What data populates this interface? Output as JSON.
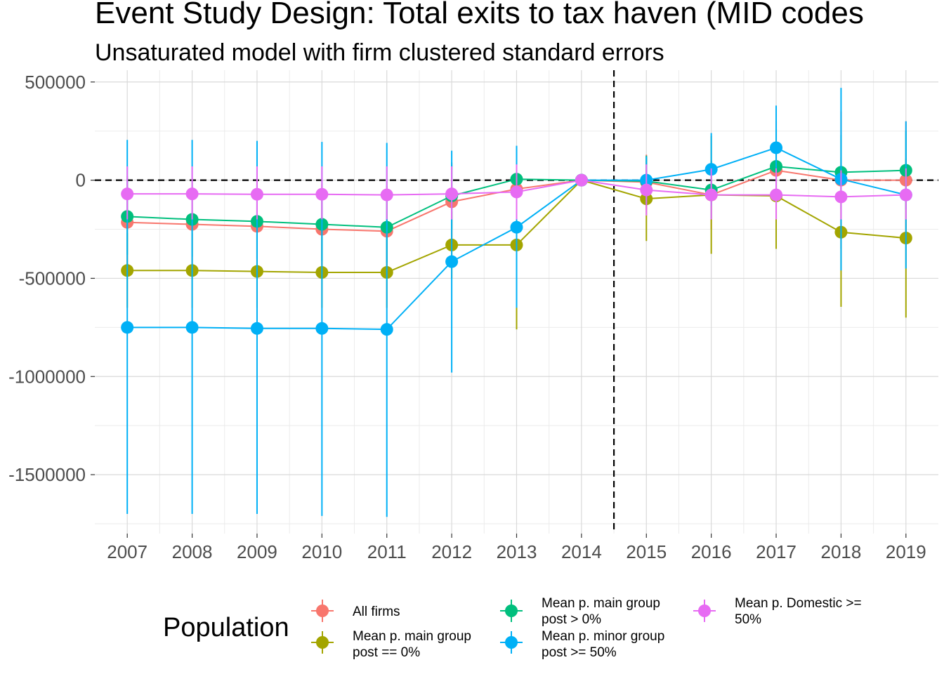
{
  "chart_data": {
    "type": "line",
    "title": "Event Study Design: Total exits to tax haven (MID codes",
    "subtitle": "Unsaturated model with firm clustered standard errors",
    "xlabel": "",
    "ylabel": "",
    "x": [
      2007,
      2008,
      2009,
      2010,
      2011,
      2012,
      2013,
      2014,
      2015,
      2016,
      2017,
      2018,
      2019
    ],
    "xlim": [
      2006.5,
      2019.5
    ],
    "ylim": [
      -1800000,
      560000
    ],
    "yticks": [
      500000,
      0,
      -500000,
      -1000000,
      -1500000
    ],
    "ytick_labels": [
      "500000",
      "0",
      "-500000",
      "-1000000",
      "-1500000"
    ],
    "grid": true,
    "reference_lines": {
      "horizontal": 0,
      "vertical": 2014.5,
      "style": "dashed"
    },
    "legend": {
      "title": "Population",
      "position": "bottom"
    },
    "series": [
      {
        "name": "All firms",
        "color": "#F8766D",
        "values": [
          -215000,
          -225000,
          -235000,
          -250000,
          -260000,
          -110000,
          -45000,
          0,
          -10000,
          -75000,
          50000,
          0,
          0
        ],
        "lower": [
          -450000,
          -460000,
          -470000,
          -480000,
          -490000,
          -300000,
          -200000,
          0,
          -150000,
          -250000,
          -200000,
          -350000,
          -300000
        ],
        "upper": [
          20000,
          10000,
          0,
          -20000,
          -30000,
          80000,
          110000,
          0,
          130000,
          100000,
          300000,
          350000,
          300000
        ]
      },
      {
        "name": "Mean p. main group post == 0%",
        "color": "#A3A500",
        "values": [
          -460000,
          -460000,
          -465000,
          -470000,
          -470000,
          -330000,
          -330000,
          0,
          -95000,
          -75000,
          -80000,
          -265000,
          -295000
        ],
        "lower": [
          -650000,
          -650000,
          -650000,
          -650000,
          -650000,
          -500000,
          -760000,
          0,
          -310000,
          -375000,
          -350000,
          -645000,
          -700000
        ],
        "upper": [
          -270000,
          -270000,
          -280000,
          -290000,
          -290000,
          -160000,
          100000,
          0,
          120000,
          225000,
          190000,
          115000,
          110000
        ]
      },
      {
        "name": "Mean p. main group post > 0%",
        "color": "#00BF7D",
        "values": [
          -185000,
          -200000,
          -210000,
          -225000,
          -240000,
          -80000,
          5000,
          0,
          -5000,
          -50000,
          70000,
          40000,
          50000
        ],
        "lower": [
          -380000,
          -390000,
          -400000,
          -410000,
          -420000,
          -250000,
          -150000,
          0,
          -130000,
          -200000,
          -120000,
          -150000,
          -150000
        ],
        "upper": [
          10000,
          -5000,
          -20000,
          -40000,
          -60000,
          90000,
          160000,
          0,
          125000,
          100000,
          260000,
          230000,
          250000
        ]
      },
      {
        "name": "Mean p. minor group post >= 50%",
        "color": "#00B0F6",
        "values": [
          -750000,
          -750000,
          -755000,
          -755000,
          -760000,
          -415000,
          -240000,
          0,
          0,
          55000,
          165000,
          5000,
          -75000
        ],
        "lower": [
          -1700000,
          -1700000,
          -1700000,
          -1710000,
          -1715000,
          -980000,
          -650000,
          0,
          -120000,
          -130000,
          -50000,
          -460000,
          -450000
        ],
        "upper": [
          205000,
          205000,
          200000,
          195000,
          190000,
          150000,
          175000,
          0,
          120000,
          240000,
          380000,
          470000,
          300000
        ]
      },
      {
        "name": "Mean p. Domestic >= 50%",
        "color": "#E76BF3",
        "values": [
          -70000,
          -70000,
          -72000,
          -72000,
          -75000,
          -70000,
          -60000,
          0,
          -50000,
          -75000,
          -75000,
          -85000,
          -75000
        ],
        "lower": [
          -200000,
          -200000,
          -200000,
          -200000,
          -200000,
          -200000,
          -200000,
          0,
          -180000,
          -200000,
          -200000,
          -200000,
          -200000
        ],
        "upper": [
          70000,
          70000,
          70000,
          70000,
          70000,
          70000,
          80000,
          0,
          80000,
          60000,
          60000,
          50000,
          60000
        ]
      }
    ]
  },
  "legend_labels": [
    {
      "line1": "All firms",
      "line2": ""
    },
    {
      "line1": "Mean p. main group",
      "line2": "post == 0%"
    },
    {
      "line1": "Mean p. main group",
      "line2": "post > 0%"
    },
    {
      "line1": "Mean p. minor group",
      "line2": "post >= 50%"
    },
    {
      "line1": "Mean p. Domestic >=",
      "line2": "50%"
    }
  ]
}
